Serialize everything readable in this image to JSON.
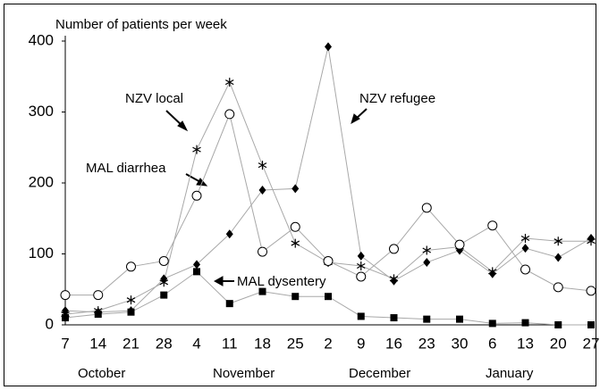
{
  "chart_data": {
    "type": "line",
    "title": "Number of patients per week",
    "categories": [
      "7",
      "14",
      "21",
      "28",
      "4",
      "11",
      "18",
      "25",
      "2",
      "9",
      "16",
      "23",
      "30",
      "6",
      "13",
      "20",
      "27"
    ],
    "months": [
      "October",
      "November",
      "December",
      "January"
    ],
    "series": [
      {
        "name": "NZV local",
        "color": "#000000",
        "marker": "star",
        "values": [
          15,
          20,
          35,
          60,
          247,
          342,
          225,
          115,
          88,
          83,
          65,
          105,
          110,
          75,
          122,
          118,
          118
        ]
      },
      {
        "name": "NZV refugee",
        "color": "#000000",
        "marker": "diamond",
        "values": [
          20,
          18,
          20,
          65,
          85,
          128,
          190,
          192,
          392,
          97,
          62,
          88,
          105,
          72,
          108,
          95,
          122
        ]
      },
      {
        "name": "MAL diarrhea",
        "color": "#000000",
        "marker": "circle",
        "values": [
          42,
          42,
          82,
          90,
          182,
          297,
          103,
          138,
          90,
          68,
          107,
          165,
          113,
          140,
          78,
          53,
          48
        ]
      },
      {
        "name": "MAL dysentery",
        "color": "#000000",
        "marker": "square",
        "values": [
          10,
          15,
          18,
          42,
          75,
          30,
          47,
          40,
          40,
          12,
          10,
          8,
          8,
          2,
          3,
          0,
          0
        ]
      }
    ],
    "line_color": "#a8a8a8",
    "ylim": [
      0,
      400
    ],
    "yticks": [
      0,
      100,
      200,
      300,
      400
    ]
  }
}
